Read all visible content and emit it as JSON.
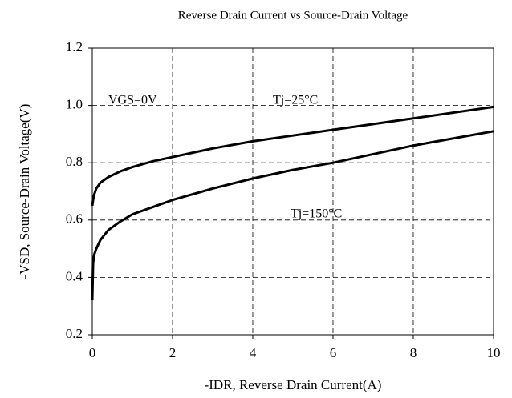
{
  "chart_data": {
    "type": "line",
    "title": "Reverse Drain Current vs Source-Drain Voltage",
    "x_label": "-IDR, Reverse Drain Current(A)",
    "y_label": "-VSD, Source-Drain Voltage(V)",
    "annotations": [
      "VGS=0V",
      "Tj=25°C",
      "Tj=150°C"
    ],
    "x": [
      0,
      0.02,
      0.05,
      0.1,
      0.2,
      0.4,
      0.7,
      1,
      1.5,
      2,
      3,
      4,
      5,
      6,
      7,
      8,
      9,
      10
    ],
    "series": [
      {
        "name": "Tj=25°C",
        "color": "#000000",
        "values": [
          0.65,
          0.67,
          0.69,
          0.71,
          0.73,
          0.75,
          0.77,
          0.785,
          0.805,
          0.82,
          0.85,
          0.875,
          0.895,
          0.915,
          0.935,
          0.955,
          0.975,
          0.995
        ]
      },
      {
        "name": "Tj=150°C",
        "color": "#000000",
        "values": [
          0.32,
          0.45,
          0.48,
          0.5,
          0.53,
          0.565,
          0.595,
          0.62,
          0.645,
          0.67,
          0.71,
          0.745,
          0.775,
          0.8,
          0.83,
          0.86,
          0.885,
          0.91
        ]
      }
    ],
    "xlim": [
      0,
      10
    ],
    "xticks": [
      0,
      2,
      4,
      6,
      8,
      10
    ],
    "ylim": [
      0.2,
      1.2
    ],
    "yticks": [
      0.2,
      0.4,
      0.6,
      0.8,
      {
        "value": 1,
        "label": "1.0"
      },
      1.2
    ],
    "grid": true
  }
}
